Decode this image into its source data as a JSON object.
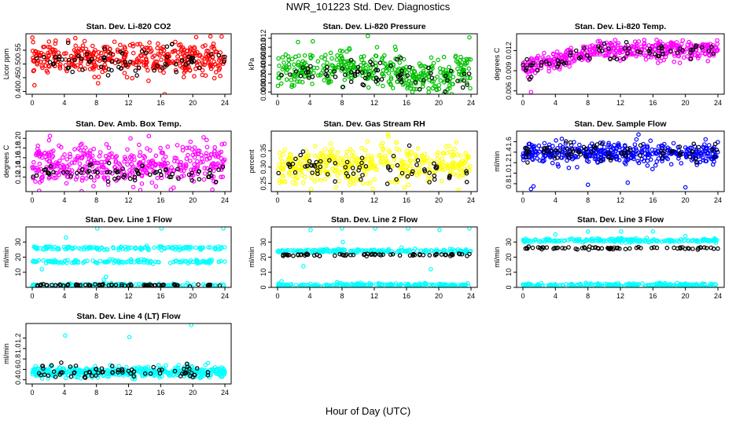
{
  "title": "NWR_101223 Std. Dev. Diagnostics",
  "xlabel": "Hour of Day (UTC)",
  "chart_data": [
    {
      "type": "scatter",
      "title": "Stan. Dev. Li-820 CO2",
      "ylabel": "Licor ppm",
      "xlim": [
        0,
        24
      ],
      "ylim": [
        0.39,
        0.61
      ],
      "yticks": [
        0.4,
        0.45,
        0.5,
        0.55
      ],
      "ytick_labels": [
        "0.40",
        "0.45",
        "0.50",
        "0.55"
      ],
      "series": [
        {
          "color": "#ff0000",
          "n": 420,
          "mean": 0.52,
          "sd": 0.028,
          "trend": [],
          "outliers": [
            [
              8.2,
              0.43
            ],
            [
              16.5,
              0.39
            ],
            [
              23.6,
              0.6
            ]
          ]
        },
        {
          "color": "#000000",
          "n": 70,
          "mean": 0.51,
          "sd": 0.028,
          "outliers": []
        }
      ]
    },
    {
      "type": "scatter",
      "title": "Stan. Dev. Li-820 Pressure",
      "ylabel": "kPa",
      "xlim": [
        0,
        24
      ],
      "ylim": [
        -0.0005,
        0.013
      ],
      "yticks": [
        0,
        0.002,
        0.004,
        0.006,
        0.008,
        0.01,
        0.012
      ],
      "ytick_labels": [
        "0.000",
        "0.002",
        "0.004",
        "0.006",
        "0.008",
        "0.010",
        "0.012"
      ],
      "series": [
        {
          "color": "#00c000",
          "n": 420,
          "mean": 0.005,
          "sd": 0.002,
          "outliers": [
            [
              11.2,
              0.0125
            ],
            [
              23.8,
              0.0122
            ]
          ]
        },
        {
          "color": "#000000",
          "n": 70,
          "mean": 0.004,
          "sd": 0.0015,
          "outliers": []
        }
      ]
    },
    {
      "type": "scatter",
      "title": "Stan. Dev. Li-820 Temp.",
      "ylabel": "degrees C",
      "xlim": [
        0,
        24
      ],
      "ylim": [
        0.0055,
        0.0145
      ],
      "yticks": [
        0.006,
        0.009,
        0.012
      ],
      "ytick_labels": [
        "0.006",
        "0.009",
        "0.012"
      ],
      "series": [
        {
          "color": "#ff00ff",
          "n": 420,
          "mean": 0.0115,
          "sd": 0.0007,
          "outliers": [
            [
              1.0,
              0.0058
            ],
            [
              0.9,
              0.0078
            ]
          ]
        },
        {
          "color": "#000000",
          "n": 70,
          "mean": 0.0115,
          "sd": 0.0006,
          "outliers": []
        }
      ]
    },
    {
      "type": "scatter",
      "title": "Stan. Dev. Amb. Box Temp.",
      "ylabel": "degrees C",
      "xlim": [
        0,
        24
      ],
      "ylim": [
        0.09,
        0.215
      ],
      "yticks": [
        0.12,
        0.14,
        0.16,
        0.18,
        0.2
      ],
      "ytick_labels": [
        "0.12",
        "0.14",
        "0.16",
        "0.18",
        "0.20"
      ],
      "series": [
        {
          "color": "#ff00ff",
          "n": 420,
          "mean": 0.145,
          "sd": 0.022,
          "outliers": [
            [
              2.2,
              0.205
            ]
          ]
        },
        {
          "color": "#000000",
          "n": 70,
          "mean": 0.128,
          "sd": 0.01,
          "outliers": []
        }
      ]
    },
    {
      "type": "scatter",
      "title": "Stan. Dev. Gas Stream RH",
      "ylabel": "percent",
      "xlim": [
        0,
        24
      ],
      "ylim": [
        0.225,
        0.41
      ],
      "yticks": [
        0.25,
        0.3,
        0.35
      ],
      "ytick_labels": [
        "0.25",
        "0.30",
        "0.35"
      ],
      "series": [
        {
          "color": "#ffff00",
          "n": 420,
          "mean": 0.305,
          "sd": 0.028,
          "outliers": [
            [
              13.7,
              0.4
            ]
          ]
        },
        {
          "color": "#000000",
          "n": 70,
          "mean": 0.295,
          "sd": 0.025,
          "outliers": []
        }
      ]
    },
    {
      "type": "scatter",
      "title": "Stan. Dev. Sample Flow",
      "ylabel": "ml/min",
      "xlim": [
        0,
        24
      ],
      "ylim": [
        0.65,
        1.8
      ],
      "yticks": [
        0.8,
        1.0,
        1.2,
        1.4,
        1.6
      ],
      "ytick_labels": [
        "0.8",
        "1.0",
        "1.2",
        "1.4",
        "1.6"
      ],
      "series": [
        {
          "color": "#0000ff",
          "n": 420,
          "mean": 1.38,
          "sd": 0.1,
          "outliers": [
            [
              1.0,
              0.7
            ],
            [
              1.3,
              0.75
            ],
            [
              8.0,
              0.78
            ],
            [
              12.9,
              0.82
            ],
            [
              20.0,
              0.73
            ]
          ]
        },
        {
          "color": "#000000",
          "n": 70,
          "mean": 1.4,
          "sd": 0.09,
          "outliers": []
        }
      ]
    },
    {
      "type": "scatter",
      "title": "Stan. Dev. Line 1 Flow",
      "ylabel": "ml/min",
      "xlim": [
        0,
        24
      ],
      "ylim": [
        0,
        40
      ],
      "yticks": [
        10,
        20,
        30
      ],
      "ytick_labels": [
        "10",
        "20",
        "30"
      ],
      "series": [
        {
          "color": "#00ffff",
          "bands": [
            26,
            17,
            1.5
          ],
          "n": 420,
          "outliers": [
            [
              4.2,
              33
            ],
            [
              8.1,
              39
            ],
            [
              16.1,
              39
            ],
            [
              23.8,
              39
            ],
            [
              1.2,
              12
            ],
            [
              8.9,
              5
            ],
            [
              9.2,
              7
            ]
          ]
        },
        {
          "color": "#000000",
          "mean": 1.5,
          "n": 70,
          "sd": 0.3
        }
      ]
    },
    {
      "type": "scatter",
      "title": "Stan. Dev. Line 2 Flow",
      "ylabel": "ml/min",
      "xlim": [
        0,
        24
      ],
      "ylim": [
        0,
        40
      ],
      "yticks": [
        0,
        10,
        20,
        30
      ],
      "ytick_labels": [
        "0",
        "10",
        "20",
        "30"
      ],
      "series": [
        {
          "color": "#00ffff",
          "bands": [
            24,
            1.5
          ],
          "n": 420,
          "outliers": [
            [
              4.1,
              38
            ],
            [
              8.0,
              39
            ],
            [
              8.1,
              30
            ],
            [
              12.1,
              39
            ],
            [
              16.2,
              39
            ],
            [
              20.1,
              38
            ],
            [
              23.8,
              39
            ],
            [
              0.5,
              4
            ],
            [
              3.2,
              14
            ],
            [
              19.0,
              12
            ]
          ]
        },
        {
          "color": "#000000",
          "mean": 21.5,
          "n": 70,
          "sd": 0.5
        }
      ]
    },
    {
      "type": "scatter",
      "title": "Stan. Dev. Line 3 Flow",
      "ylabel": "ml/min",
      "xlim": [
        0,
        24
      ],
      "ylim": [
        0,
        40
      ],
      "yticks": [
        0,
        10,
        20,
        30
      ],
      "ytick_labels": [
        "0",
        "10",
        "20",
        "30"
      ],
      "series": [
        {
          "color": "#00ffff",
          "bands": [
            31,
            1.5
          ],
          "n": 420,
          "outliers": [
            [
              4.0,
              35
            ],
            [
              8.0,
              37
            ],
            [
              12.1,
              37
            ],
            [
              16.0,
              37
            ],
            [
              20.0,
              34
            ]
          ]
        },
        {
          "color": "#000000",
          "mean": 26,
          "n": 70,
          "sd": 0.4
        }
      ]
    },
    {
      "type": "scatter",
      "title": "Stan. Dev. Line 4 (LT) Flow",
      "ylabel": "ml/min",
      "xlim": [
        0,
        24
      ],
      "ylim": [
        0.32,
        1.48
      ],
      "yticks": [
        0.4,
        0.6,
        0.8,
        1.0,
        1.2
      ],
      "ytick_labels": [
        "0.4",
        "0.6",
        "0.8",
        "1.0",
        "1.2"
      ],
      "series": [
        {
          "color": "#00ffff",
          "n": 420,
          "mean": 0.55,
          "sd": 0.05,
          "outliers": [
            [
              4.1,
              1.25
            ],
            [
              12.1,
              1.22
            ],
            [
              19.8,
              1.45
            ],
            [
              21.9,
              0.72
            ]
          ]
        },
        {
          "color": "#000000",
          "n": 70,
          "mean": 0.56,
          "sd": 0.06,
          "outliers": []
        }
      ]
    }
  ],
  "xticks": [
    0,
    4,
    8,
    12,
    16,
    20,
    24
  ],
  "xtick_labels": [
    "0",
    "4",
    "8",
    "12",
    "16",
    "20",
    "24"
  ]
}
